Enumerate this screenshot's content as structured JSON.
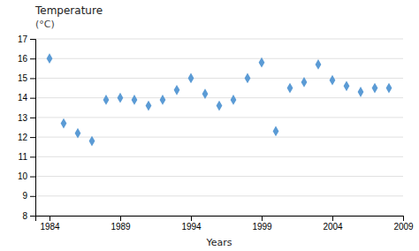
{
  "chart_data": {
    "type": "scatter",
    "title": "Temperature",
    "subtitle": "(°C)",
    "xlabel": "Years",
    "x": [
      1984,
      1985,
      1986,
      1987,
      1988,
      1989,
      1990,
      1991,
      1992,
      1993,
      1994,
      1995,
      1996,
      1997,
      1998,
      1999,
      2000,
      2001,
      2002,
      2003,
      2004,
      2005,
      2006,
      2007,
      2008
    ],
    "values": [
      16.0,
      12.7,
      12.2,
      11.8,
      13.9,
      14.0,
      13.9,
      13.6,
      13.9,
      14.4,
      15.0,
      14.2,
      13.6,
      13.9,
      15.0,
      15.8,
      12.3,
      14.5,
      14.8,
      15.7,
      14.9,
      14.6,
      14.3,
      14.5,
      14.5
    ],
    "color": "#5B9BD5",
    "marker": "diamond",
    "xlim": [
      1983,
      2009
    ],
    "ylim": [
      8,
      17
    ],
    "xticks": [
      1984,
      1989,
      1994,
      1999,
      2004,
      2009
    ],
    "yticks": [
      8,
      9,
      10,
      11,
      12,
      13,
      14,
      15,
      16,
      17
    ],
    "grid": "y"
  }
}
